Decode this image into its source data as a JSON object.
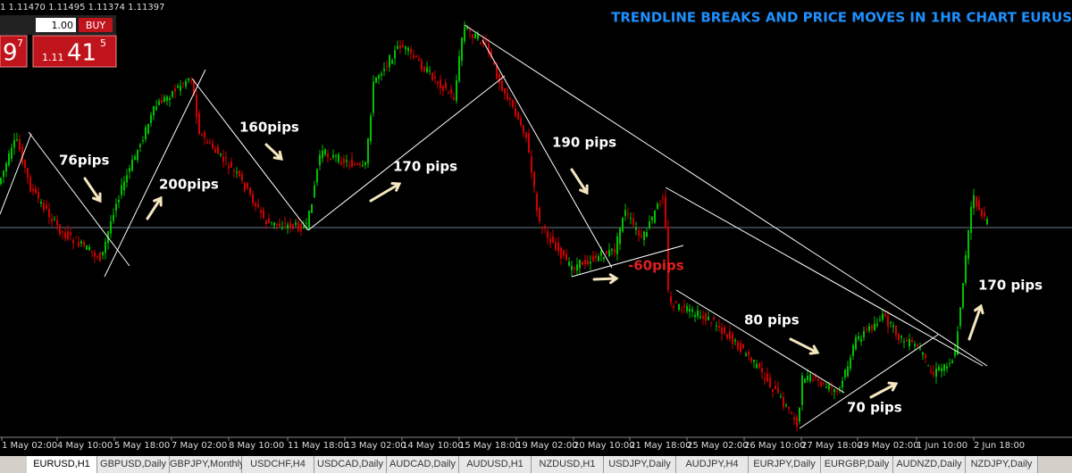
{
  "toolbar": {
    "quote": "1 1.11470 1.11495 1.11374 1.11397",
    "lot": "1.00",
    "buy_label": "BUY",
    "sell_big": "9",
    "sell_super": "7",
    "buy_small": "1.11",
    "buy_big": "41",
    "buy_super": "5"
  },
  "title": "TRENDLINE BREAKS AND PRICE MOVES IN 1HR CHART EURUS",
  "annotations": [
    "76pips",
    "200pips",
    "160pips",
    "170 pips",
    "190 pips",
    "-60pips",
    "80 pips",
    "70 pips",
    "170 pips"
  ],
  "time_axis": [
    "1 May 02:00",
    "4 May 10:00",
    "5 May 18:00",
    "7 May 02:00",
    "8 May 10:00",
    "11 May 18:00",
    "13 May 02:00",
    "14 May 10:00",
    "15 May 18:00",
    "19 May 02:00",
    "20 May 10:00",
    "21 May 18:00",
    "25 May 02:00",
    "26 May 10:00",
    "27 May 18:00",
    "29 May 02:00",
    "1 Jun 10:00",
    "2 Jun 18:00"
  ],
  "tabs": [
    "EURUSD,H1",
    "GBPUSD,Daily",
    "GBPJPY,Monthly",
    "USDCHF,H4",
    "USDCAD,Daily",
    "AUDCAD,Daily",
    "AUDUSD,H1",
    "NZDUSD,H1",
    "USDJPY,Daily",
    "AUDJPY,H4",
    "EURJPY,Daily",
    "EURGBP,Daily",
    "AUDNZD,Daily",
    "NZDJPY,Daily"
  ]
}
